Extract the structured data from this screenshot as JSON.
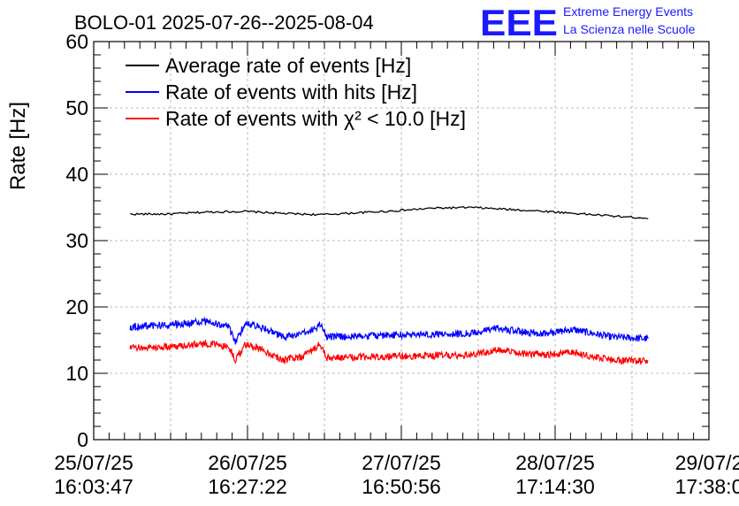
{
  "chart_data": {
    "type": "line",
    "title": "BOLO-01 2025-07-26--2025-08-04",
    "ylabel": "Rate [Hz]",
    "xlabel": "",
    "ylim": [
      0,
      60
    ],
    "yticks": [
      0,
      10,
      20,
      30,
      40,
      50,
      60
    ],
    "xticks": [
      {
        "date": "25/07/25",
        "time": "16:03:47"
      },
      {
        "date": "26/07/25",
        "time": "16:27:22"
      },
      {
        "date": "27/07/25",
        "time": "16:50:56"
      },
      {
        "date": "28/07/25",
        "time": "17:14:30"
      },
      {
        "date": "29/07/2",
        "time": "17:38:0"
      }
    ],
    "grid": true,
    "legend_position": "top-left",
    "logo": {
      "text": "EEE",
      "line1": "Extreme Energy Events",
      "line2": "La Scienza nelle Scuole",
      "color": "#1a1aff"
    },
    "series": [
      {
        "name": "Average rate of events [Hz]",
        "color": "#000000",
        "x": [
          "25/07/25 21:50",
          "26/07/25 04:00",
          "26/07/25 10:00",
          "26/07/25 16:00",
          "26/07/25 22:00",
          "27/07/25 04:00",
          "27/07/25 10:00",
          "27/07/25 16:00",
          "27/07/25 22:00",
          "28/07/25 04:00",
          "28/07/25 10:00",
          "28/07/25 16:00",
          "28/07/25 22:00",
          "29/07/25 04:00",
          "29/07/25 08:00"
        ],
        "values": [
          34.0,
          34.0,
          34.3,
          34.4,
          34.1,
          33.9,
          34.2,
          34.5,
          34.9,
          35.0,
          34.7,
          34.4,
          34.0,
          33.6,
          33.4
        ]
      },
      {
        "name": "Rate of events with hits [Hz]",
        "color": "#0000ff",
        "x": [
          "25/07/25 21:50",
          "26/07/25 04:00",
          "26/07/25 10:00",
          "26/07/25 13:30",
          "26/07/25 14:30",
          "26/07/25 16:00",
          "26/07/25 18:00",
          "26/07/25 22:00",
          "27/07/25 01:00",
          "27/07/25 04:00",
          "27/07/25 05:00",
          "27/07/25 10:00",
          "27/07/25 16:00",
          "27/07/25 22:00",
          "28/07/25 04:00",
          "28/07/25 08:00",
          "28/07/25 12:00",
          "28/07/25 16:00",
          "28/07/25 20:00",
          "29/07/25 02:00",
          "29/07/25 08:00"
        ],
        "values": [
          17.0,
          17.3,
          17.8,
          17.0,
          14.5,
          17.5,
          17.2,
          15.5,
          15.8,
          17.3,
          15.5,
          15.6,
          15.8,
          15.9,
          16.0,
          16.8,
          16.2,
          16.0,
          16.6,
          15.5,
          15.2
        ]
      },
      {
        "name": "Rate of events with χ² < 10.0 [Hz]",
        "color": "#ff0000",
        "x": [
          "25/07/25 21:50",
          "26/07/25 04:00",
          "26/07/25 10:00",
          "26/07/25 13:30",
          "26/07/25 14:30",
          "26/07/25 16:00",
          "26/07/25 18:00",
          "26/07/25 22:00",
          "27/07/25 01:00",
          "27/07/25 04:00",
          "27/07/25 05:00",
          "27/07/25 10:00",
          "27/07/25 16:00",
          "27/07/25 22:00",
          "28/07/25 04:00",
          "28/07/25 08:00",
          "28/07/25 12:00",
          "28/07/25 16:00",
          "28/07/25 20:00",
          "29/07/25 02:00",
          "29/07/25 08:00"
        ],
        "values": [
          13.8,
          14.0,
          14.5,
          14.0,
          12.0,
          14.2,
          14.0,
          12.0,
          12.5,
          14.3,
          12.3,
          12.4,
          12.6,
          12.7,
          12.8,
          13.5,
          13.0,
          12.8,
          13.2,
          12.0,
          11.8
        ]
      }
    ]
  }
}
